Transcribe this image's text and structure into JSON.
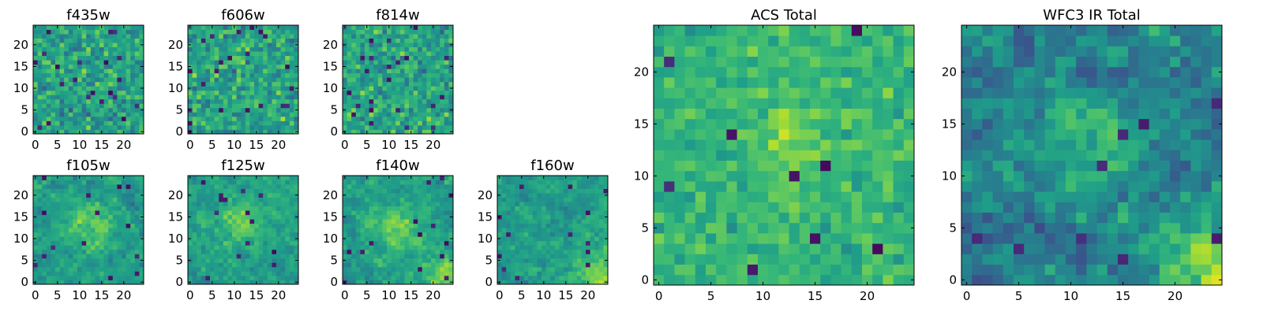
{
  "chart_data": [
    {
      "type": "heatmap",
      "title": "f435w",
      "xticks": [
        "0",
        "5",
        "10",
        "15",
        "20"
      ],
      "yticks": [
        "0",
        "5",
        "10",
        "15",
        "20"
      ],
      "xlim": [
        -0.5,
        24.5
      ],
      "ylim": [
        -0.5,
        24.5
      ],
      "grid_size": [
        25,
        25
      ],
      "colormap": "viridis",
      "pattern": "noise",
      "seed": 11
    },
    {
      "type": "heatmap",
      "title": "f606w",
      "xticks": [
        "0",
        "5",
        "10",
        "15",
        "20"
      ],
      "yticks": [
        "0",
        "5",
        "10",
        "15",
        "20"
      ],
      "xlim": [
        -0.5,
        24.5
      ],
      "ylim": [
        -0.5,
        24.5
      ],
      "grid_size": [
        25,
        25
      ],
      "colormap": "viridis",
      "pattern": "noise",
      "seed": 22
    },
    {
      "type": "heatmap",
      "title": "f814w",
      "xticks": [
        "0",
        "5",
        "10",
        "15",
        "20"
      ],
      "yticks": [
        "0",
        "5",
        "10",
        "15",
        "20"
      ],
      "xlim": [
        -0.5,
        24.5
      ],
      "ylim": [
        -0.5,
        24.5
      ],
      "grid_size": [
        25,
        25
      ],
      "colormap": "viridis",
      "pattern": "noise",
      "seed": 33
    },
    {
      "type": "heatmap",
      "title": "f105w",
      "xticks": [
        "0",
        "5",
        "10",
        "15",
        "20"
      ],
      "yticks": [
        "0",
        "5",
        "10",
        "15",
        "20"
      ],
      "xlim": [
        -0.5,
        24.5
      ],
      "ylim": [
        -0.5,
        24.5
      ],
      "grid_size": [
        25,
        25
      ],
      "colormap": "viridis",
      "pattern": "center",
      "seed": 44
    },
    {
      "type": "heatmap",
      "title": "f125w",
      "xticks": [
        "0",
        "5",
        "10",
        "15",
        "20"
      ],
      "yticks": [
        "0",
        "5",
        "10",
        "15",
        "20"
      ],
      "xlim": [
        -0.5,
        24.5
      ],
      "ylim": [
        -0.5,
        24.5
      ],
      "grid_size": [
        25,
        25
      ],
      "colormap": "viridis",
      "pattern": "center",
      "seed": 55
    },
    {
      "type": "heatmap",
      "title": "f140w",
      "xticks": [
        "0",
        "5",
        "10",
        "15",
        "20"
      ],
      "yticks": [
        "0",
        "5",
        "10",
        "15",
        "20"
      ],
      "xlim": [
        -0.5,
        24.5
      ],
      "ylim": [
        -0.5,
        24.5
      ],
      "grid_size": [
        25,
        25
      ],
      "colormap": "viridis",
      "pattern": "center-corner",
      "seed": 66
    },
    {
      "type": "heatmap",
      "title": "f160w",
      "xticks": [
        "0",
        "5",
        "10",
        "15",
        "20"
      ],
      "yticks": [
        "0",
        "5",
        "10",
        "15",
        "20"
      ],
      "xlim": [
        -0.5,
        24.5
      ],
      "ylim": [
        -0.5,
        24.5
      ],
      "grid_size": [
        25,
        25
      ],
      "colormap": "viridis",
      "pattern": "corner",
      "seed": 77
    },
    {
      "type": "heatmap",
      "title": "ACS Total",
      "xticks": [
        "0",
        "5",
        "10",
        "15",
        "20"
      ],
      "yticks": [
        "0",
        "5",
        "10",
        "15",
        "20"
      ],
      "xlim": [
        -0.5,
        24.5
      ],
      "ylim": [
        -0.5,
        24.5
      ],
      "grid_size": [
        25,
        25
      ],
      "colormap": "viridis",
      "pattern": "acs",
      "seed": 88
    },
    {
      "type": "heatmap",
      "title": "WFC3 IR Total",
      "xticks": [
        "0",
        "5",
        "10",
        "15",
        "20"
      ],
      "yticks": [
        "0",
        "5",
        "10",
        "15",
        "20"
      ],
      "xlim": [
        -0.5,
        24.5
      ],
      "ylim": [
        -0.5,
        24.5
      ],
      "grid_size": [
        25,
        25
      ],
      "colormap": "viridis",
      "pattern": "wfc3",
      "seed": 99
    }
  ]
}
